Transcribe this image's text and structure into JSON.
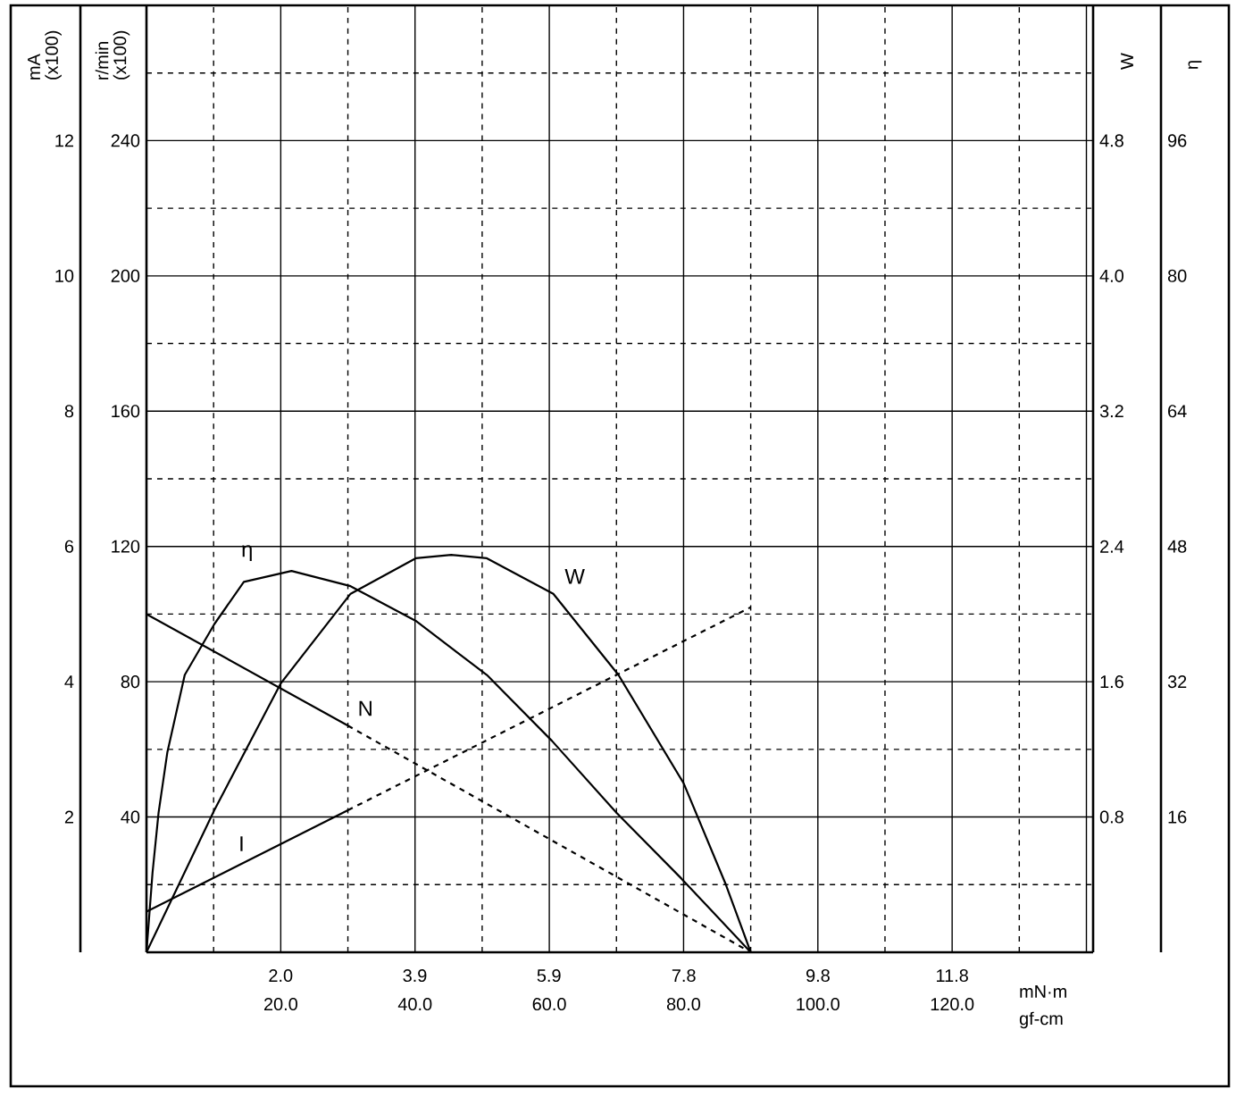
{
  "chart_data": [
    {
      "type": "line",
      "xlabel": "gf-cm",
      "x2label": "mN·m",
      "ylabel": "mA (x100)",
      "y2label": "r/min (x100)",
      "y3label": "W",
      "xlim": [
        0,
        141
      ],
      "xticks": [
        {
          "value": 20,
          "label": "20.0"
        },
        {
          "value": 40,
          "label": "40.0"
        },
        {
          "value": 60,
          "label": "60.0"
        },
        {
          "value": 80,
          "label": "80.0"
        },
        {
          "value": 100,
          "label": "100.0"
        },
        {
          "value": 120,
          "label": "120.0"
        }
      ],
      "x2lim": [
        0,
        13.83
      ],
      "x2ticks": [
        {
          "value": 1.96,
          "label": "2.0"
        },
        {
          "value": 3.92,
          "label": "3.9"
        },
        {
          "value": 5.88,
          "label": "5.9"
        },
        {
          "value": 7.85,
          "label": "7.8"
        },
        {
          "value": 9.81,
          "label": "9.8"
        },
        {
          "value": 11.77,
          "label": "11.8"
        }
      ],
      "ylim": [
        0,
        14
      ],
      "yticks": [
        2,
        4,
        6,
        8,
        10,
        12
      ],
      "y2lim": [
        0,
        280
      ],
      "y2ticks": [
        40,
        80,
        120,
        160,
        200,
        240
      ],
      "y3lim": [
        0,
        5.6
      ],
      "y3ticks": [
        0.8,
        1.6,
        2.4,
        3.2,
        {
          "value": 4,
          "label": "4.0"
        },
        4.8
      ],
      "grid": true,
      "series": [
        {
          "name": "W",
          "color": "#000000",
          "axis": "y3",
          "line_style": "solid",
          "x": [
            0,
            10.1,
            20,
            30.4,
            40.1,
            45.4,
            50.7,
            60.6,
            70.3,
            80,
            86.3,
            90
          ],
          "values": [
            0,
            0.84,
            1.59,
            2.12,
            2.33,
            2.35,
            2.33,
            2.12,
            1.64,
            1.0,
            0.4,
            0
          ]
        },
        {
          "name": "N",
          "color": "#000000",
          "axis": "y2",
          "line_style": "solid",
          "x": [
            0,
            30
          ],
          "values": [
            100,
            67
          ]
        },
        {
          "color": "#000000",
          "axis": "y2",
          "line_style": "dashed",
          "x": [
            30,
            90
          ],
          "values": [
            67,
            0
          ]
        },
        {
          "name": "I",
          "color": "#000000",
          "line_style": "solid",
          "x": [
            0,
            30
          ],
          "values": [
            0.6,
            2.1
          ]
        },
        {
          "color": "#000000",
          "line_style": "dashed",
          "x": [
            30,
            90
          ],
          "values": [
            2.1,
            5.1
          ]
        }
      ]
    },
    {
      "type": "line",
      "ylabel": "η",
      "xlim": [
        0,
        141
      ],
      "ylim": [
        0,
        112
      ],
      "yticks": [
        16,
        32,
        48,
        64,
        80,
        96
      ],
      "tick_labels": "y",
      "series": [
        {
          "name": "η",
          "color": "#000000",
          "line_style": "solid",
          "x": [
            0,
            0.9,
            1.8,
            3.1,
            5.7,
            10.1,
            14.5,
            21.6,
            30.4,
            40.1,
            50.7,
            60.4,
            70,
            79.7,
            90
          ],
          "values": [
            0,
            9.4,
            16.5,
            23.6,
            32.8,
            38.8,
            43.8,
            45.1,
            43.3,
            39.2,
            32.8,
            25,
            16.5,
            8.7,
            0
          ]
        }
      ]
    }
  ]
}
